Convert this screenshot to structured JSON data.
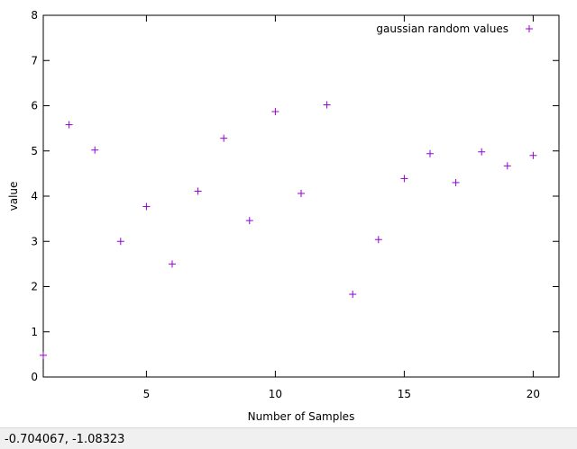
{
  "colors": {
    "point": "#9400d3",
    "axis": "#000000",
    "status_bg": "#f0f0f0"
  },
  "status_bar": {
    "coordinates": "-0.704067, -1.08323"
  },
  "chart_data": {
    "type": "scatter",
    "title": "",
    "xlabel": "Number of Samples",
    "ylabel": "value",
    "xlim": [
      1,
      21
    ],
    "ylim": [
      0,
      8
    ],
    "xticks": [
      5,
      10,
      15,
      20
    ],
    "yticks": [
      0,
      1,
      2,
      3,
      4,
      5,
      6,
      7,
      8
    ],
    "grid": false,
    "legend_position": "top-right",
    "marker": "+",
    "series": [
      {
        "name": "gaussian random values",
        "x": [
          1,
          2,
          3,
          4,
          5,
          6,
          7,
          8,
          9,
          10,
          11,
          12,
          13,
          14,
          15,
          16,
          17,
          18,
          19,
          20
        ],
        "y": [
          0.48,
          5.58,
          5.02,
          3.0,
          3.77,
          2.5,
          4.11,
          5.28,
          3.46,
          5.87,
          4.06,
          6.02,
          1.83,
          3.04,
          4.39,
          4.94,
          4.3,
          4.98,
          4.67,
          4.9
        ]
      }
    ]
  }
}
